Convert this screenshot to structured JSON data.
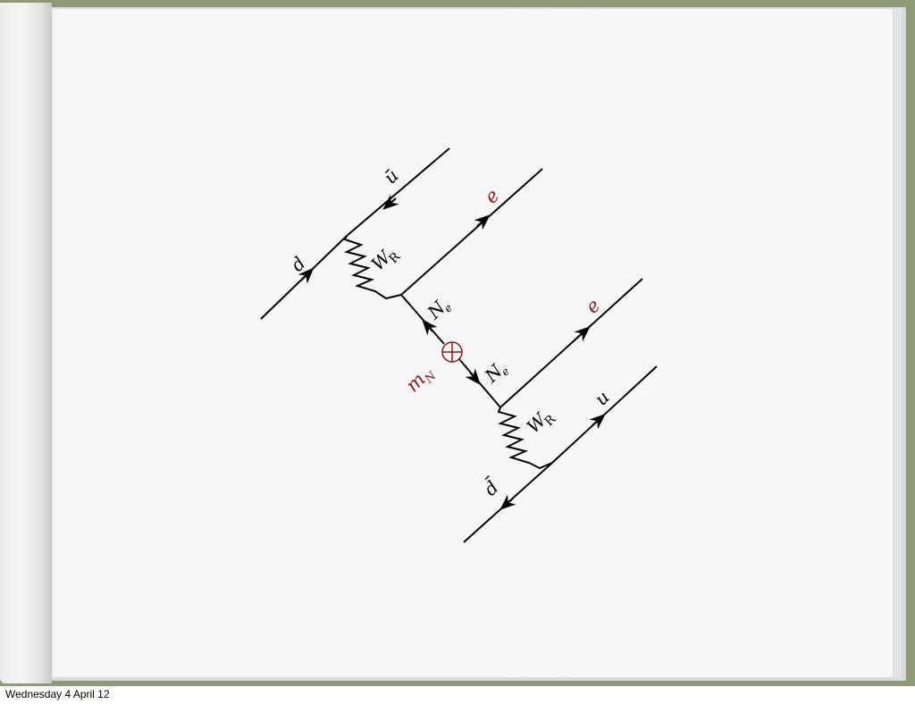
{
  "footer": {
    "date": "Wednesday 4 April 12"
  },
  "diagram": {
    "labels": {
      "d_in": "d",
      "u_bar": "ū",
      "e_top": "e",
      "w_r_top": "W",
      "w_r_top_sub": "R",
      "n_e_top": "N",
      "n_e_top_sub": "e",
      "m_n": "m",
      "m_n_sub": "N",
      "n_e_bottom": "N",
      "n_e_bottom_sub": "e",
      "e_bottom": "e",
      "w_r_bottom": "W",
      "w_r_bottom_sub": "R",
      "u_out": "u",
      "d_bar": "d̄"
    },
    "colors": {
      "line": "#000000",
      "highlight": "#8b1a1a",
      "background": "#f7f7f9",
      "frame": "#8e9977"
    },
    "icons": {
      "mass_insertion": "circled-plus-icon",
      "arrow": "arrowhead-icon"
    }
  }
}
